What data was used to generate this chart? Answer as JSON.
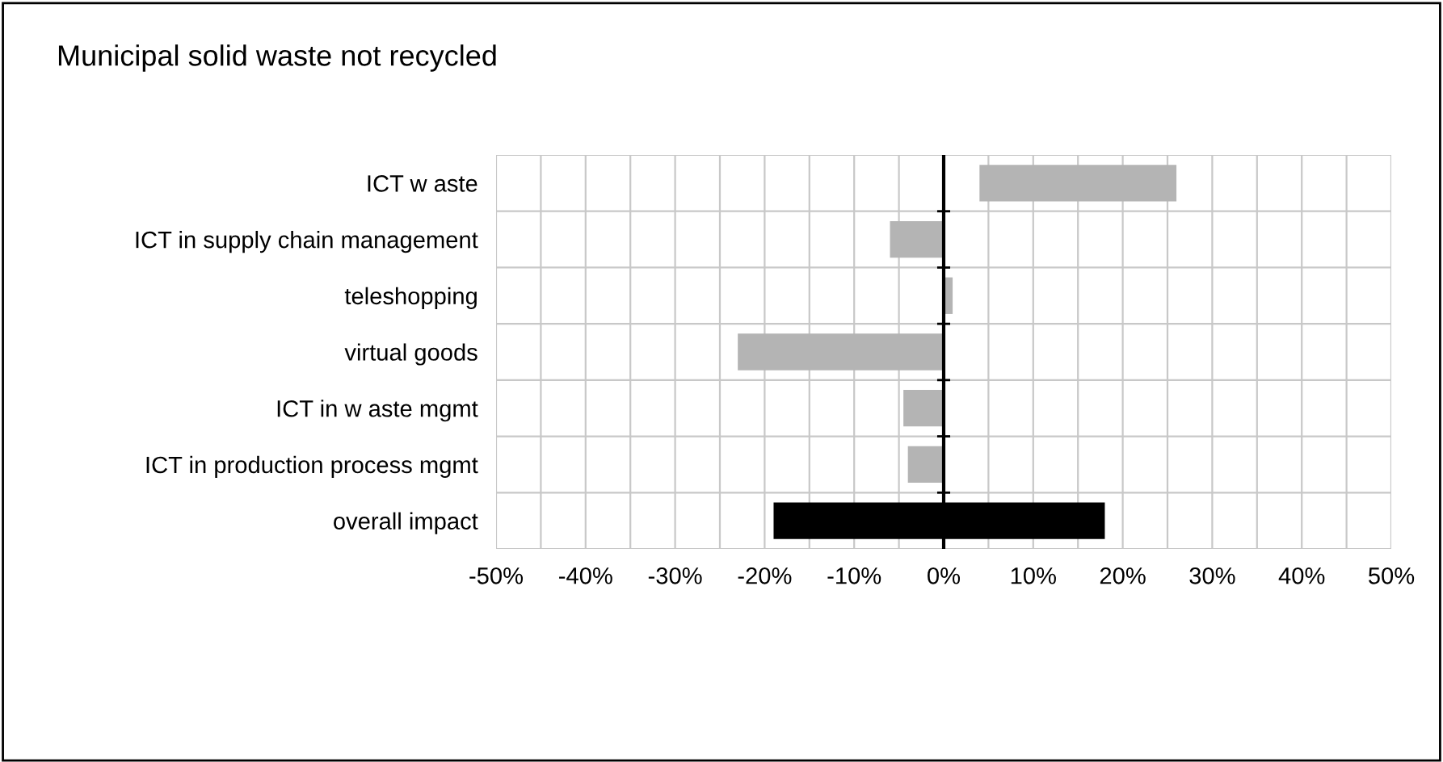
{
  "chart_data": {
    "type": "bar",
    "orientation": "horizontal",
    "title": "Municipal solid waste not recycled",
    "categories": [
      "ICT w aste",
      "ICT in supply chain management",
      "teleshopping",
      "virtual goods",
      "ICT in w aste mgmt",
      "ICT in production process mgmt",
      "overall impact"
    ],
    "base": [
      4,
      0,
      0,
      0,
      0,
      0,
      -19
    ],
    "values": [
      22,
      -6,
      1,
      -23,
      -4.5,
      -4,
      37
    ],
    "colors": [
      "#b4b4b4",
      "#b4b4b4",
      "#b4b4b4",
      "#b4b4b4",
      "#b4b4b4",
      "#b4b4b4",
      "#000000"
    ],
    "xlim": [
      -50,
      50
    ],
    "xticks": [
      {
        "value": -50,
        "label": "-50%"
      },
      {
        "value": -45,
        "label": null
      },
      {
        "value": -40,
        "label": "-40%"
      },
      {
        "value": -35,
        "label": null
      },
      {
        "value": -30,
        "label": "-30%"
      },
      {
        "value": -25,
        "label": null
      },
      {
        "value": -20,
        "label": "-20%"
      },
      {
        "value": -15,
        "label": null
      },
      {
        "value": -10,
        "label": "-10%"
      },
      {
        "value": -5,
        "label": null
      },
      {
        "value": 0,
        "label": "0%"
      },
      {
        "value": 5,
        "label": null
      },
      {
        "value": 10,
        "label": "10%"
      },
      {
        "value": 15,
        "label": null
      },
      {
        "value": 20,
        "label": "20%"
      },
      {
        "value": 25,
        "label": null
      },
      {
        "value": 30,
        "label": "30%"
      },
      {
        "value": 35,
        "label": null
      },
      {
        "value": 40,
        "label": "40%"
      },
      {
        "value": 45,
        "label": null
      },
      {
        "value": 50,
        "label": "50%"
      }
    ],
    "grid": true,
    "legend": false
  }
}
